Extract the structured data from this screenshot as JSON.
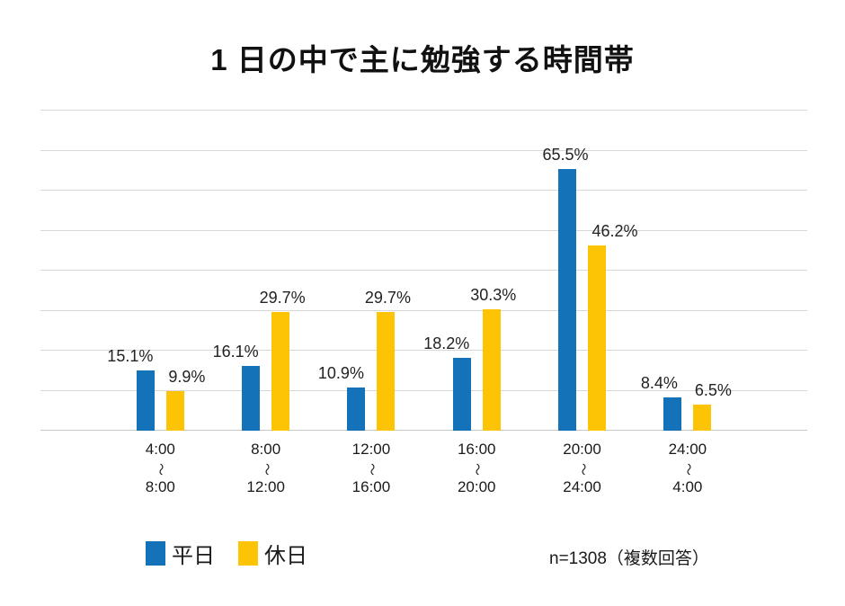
{
  "title": "1 日の中で主に勉強する時間帯",
  "note": "n=1308（複数回答）",
  "tilde": "〜",
  "chart_data": {
    "type": "bar",
    "title": "1 日の中で主に勉強する時間帯",
    "categories": [
      {
        "from": "4:00",
        "to": "8:00"
      },
      {
        "from": "8:00",
        "to": "12:00"
      },
      {
        "from": "12:00",
        "to": "16:00"
      },
      {
        "from": "16:00",
        "to": "20:00"
      },
      {
        "from": "20:00",
        "to": "24:00"
      },
      {
        "from": "24:00",
        "to": "4:00"
      }
    ],
    "series": [
      {
        "name": "平日",
        "color": "#1472B9",
        "values": [
          15.1,
          16.1,
          10.9,
          18.2,
          65.5,
          8.4
        ]
      },
      {
        "name": "休日",
        "color": "#FCC405",
        "values": [
          9.9,
          29.7,
          29.7,
          30.3,
          46.2,
          6.5
        ]
      }
    ],
    "value_suffix": "%",
    "ylim": [
      0,
      80
    ],
    "grid_step": 10,
    "grid": true,
    "legend_position": "bottom-left",
    "annotation": "n=1308（複数回答）"
  }
}
